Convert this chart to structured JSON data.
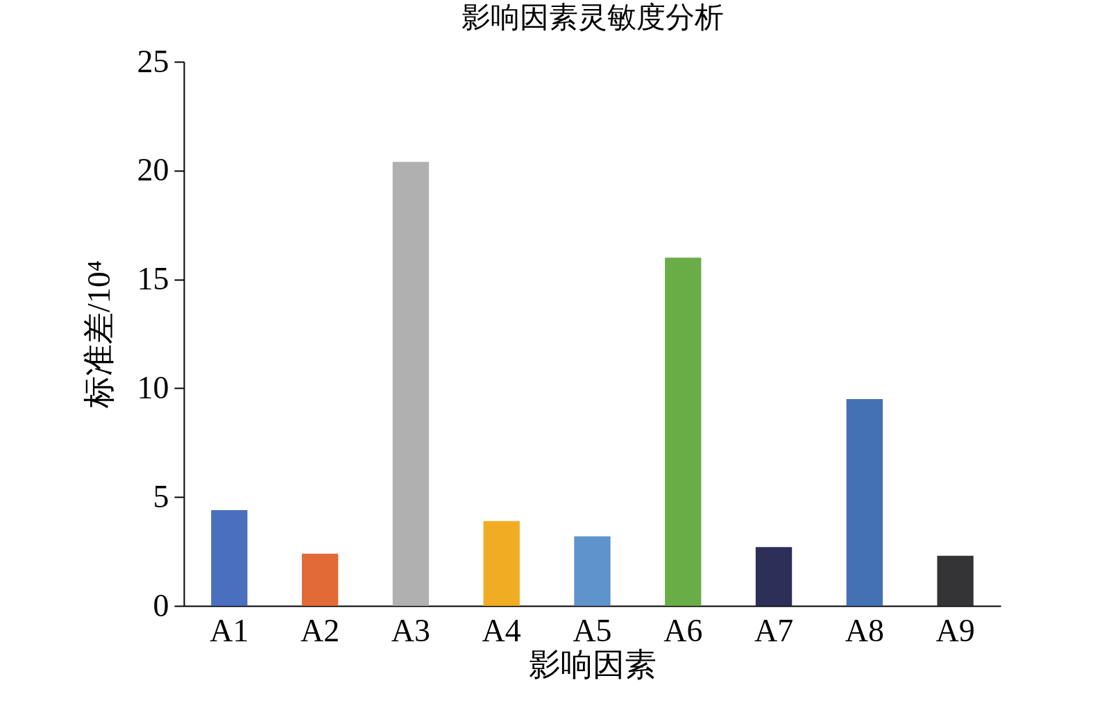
{
  "chart_data": {
    "type": "bar",
    "title": "影响因素灵敏度分析",
    "xlabel": "影响因素",
    "ylabel": "标准差/10⁴",
    "categories": [
      "A1",
      "A2",
      "A3",
      "A4",
      "A5",
      "A6",
      "A7",
      "A8",
      "A9"
    ],
    "values": [
      4.4,
      2.4,
      20.4,
      3.9,
      3.2,
      16.0,
      2.7,
      9.5,
      2.3
    ],
    "colors": [
      "#4a6fbf",
      "#e26a36",
      "#b0b0b0",
      "#f0ad24",
      "#5e93cc",
      "#69ad47",
      "#2c2f58",
      "#4371b3",
      "#343436"
    ],
    "ylim": [
      0,
      25
    ],
    "yticks": [
      0,
      5,
      10,
      15,
      20,
      25
    ],
    "grid": false
  }
}
